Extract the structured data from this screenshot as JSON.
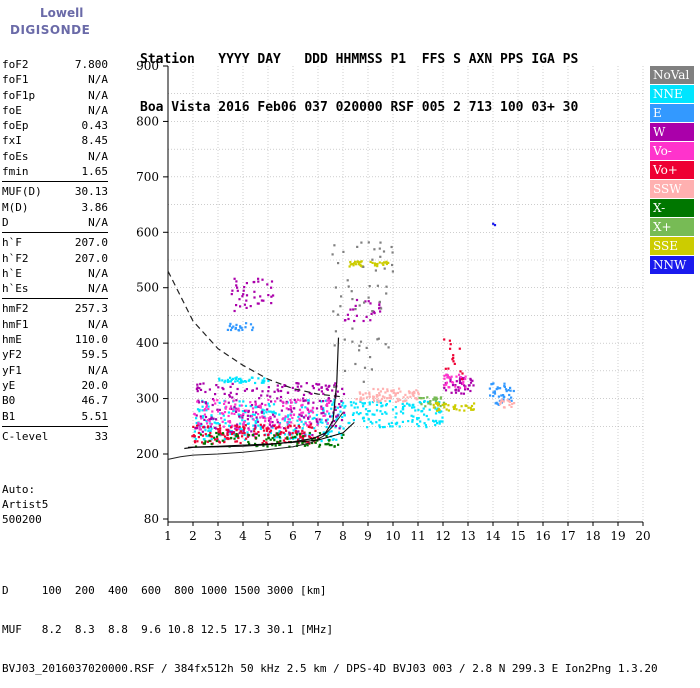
{
  "logo": {
    "line1": "Lowell",
    "line2": "DIGISONDE"
  },
  "header": {
    "row1": "Station   YYYY DAY   DDD HHMMSS P1  FFS S AXN PPS IGA PS",
    "row2": "Boa Vista 2016 Feb06 037 020000 RSF 005 2 713 100 03+ 30"
  },
  "params": [
    {
      "group": [
        {
          "k": "foF2",
          "v": "7.800"
        },
        {
          "k": "foF1",
          "v": "N/A"
        },
        {
          "k": "foF1p",
          "v": "N/A"
        },
        {
          "k": "foE",
          "v": "N/A"
        },
        {
          "k": "foEp",
          "v": "0.43"
        },
        {
          "k": "fxI",
          "v": "8.45"
        },
        {
          "k": "foEs",
          "v": "N/A"
        },
        {
          "k": "fmin",
          "v": "1.65"
        }
      ]
    },
    {
      "group": [
        {
          "k": "MUF(D)",
          "v": "30.13"
        },
        {
          "k": "M(D)",
          "v": "3.86"
        },
        {
          "k": "D",
          "v": "N/A"
        }
      ]
    },
    {
      "group": [
        {
          "k": "h`F",
          "v": "207.0"
        },
        {
          "k": "h`F2",
          "v": "207.0"
        },
        {
          "k": "h`E",
          "v": "N/A"
        },
        {
          "k": "h`Es",
          "v": "N/A"
        }
      ]
    },
    {
      "group": [
        {
          "k": "hmF2",
          "v": "257.3"
        },
        {
          "k": "hmF1",
          "v": "N/A"
        },
        {
          "k": "hmE",
          "v": "110.0"
        },
        {
          "k": "yF2",
          "v": "59.5"
        },
        {
          "k": "yF1",
          "v": "N/A"
        },
        {
          "k": "yE",
          "v": "20.0"
        },
        {
          "k": "B0",
          "v": "46.7"
        },
        {
          "k": "B1",
          "v": "5.51"
        }
      ]
    },
    {
      "group": [
        {
          "k": "C-level",
          "v": "33"
        }
      ]
    }
  ],
  "auto": {
    "line1": "Auto:",
    "line2": "Artist5",
    "line3": "500200"
  },
  "footer": {
    "row1": "D     100  200  400  600  800 1000 1500 3000 [km]",
    "row2": "MUF   8.2  8.3  8.8  9.6 10.8 12.5 17.3 30.1 [MHz]",
    "row3": "BVJ03_2016037020000.RSF / 384fx512h 50 kHz 2.5 km / DPS-4D BVJ03 003 / 2.8 N 299.3 E Ion2Png 1.3.20"
  },
  "legend": [
    {
      "label": "NoVal",
      "color": "#808080"
    },
    {
      "label": "NNE",
      "color": "#00e5ff"
    },
    {
      "label": "E",
      "color": "#3399ff"
    },
    {
      "label": "W",
      "color": "#aa00aa"
    },
    {
      "label": "Vo-",
      "color": "#ff33cc"
    },
    {
      "label": "Vo+",
      "color": "#ee0033"
    },
    {
      "label": "SSW",
      "color": "#ffb0b0"
    },
    {
      "label": "X-",
      "color": "#007700"
    },
    {
      "label": "X+",
      "color": "#77bb55"
    },
    {
      "label": "SSE",
      "color": "#cccc00"
    },
    {
      "label": "NNW",
      "color": "#1a1aee"
    }
  ],
  "chart_data": {
    "type": "scatter",
    "title": "",
    "xlabel": "",
    "ylabel": "",
    "xlim": [
      1,
      20
    ],
    "ylim": [
      80,
      900
    ],
    "xticks": [
      1,
      2,
      3,
      4,
      5,
      6,
      7,
      8,
      9,
      10,
      11,
      12,
      13,
      14,
      15,
      16,
      17,
      18,
      19,
      20
    ],
    "yticks": [
      80,
      200,
      300,
      400,
      500,
      600,
      700,
      800,
      900
    ],
    "series": [
      {
        "name": "NNE",
        "color": "#00e5ff",
        "clusters": [
          {
            "x": [
              2,
              8
            ],
            "y": [
              225,
              300
            ],
            "n": 260
          },
          {
            "x": [
              8,
              12
            ],
            "y": [
              250,
              300
            ],
            "n": 140
          },
          {
            "x": [
              3,
              5
            ],
            "y": [
              330,
              340
            ],
            "n": 40
          }
        ]
      },
      {
        "name": "E",
        "color": "#3399ff",
        "clusters": [
          {
            "x": [
              13.8,
              14.8
            ],
            "y": [
              290,
              330
            ],
            "n": 40
          },
          {
            "x": [
              3.2,
              4.4
            ],
            "y": [
              425,
              440
            ],
            "n": 20
          }
        ]
      },
      {
        "name": "W",
        "color": "#aa00aa",
        "clusters": [
          {
            "x": [
              2,
              8
            ],
            "y": [
              235,
              330
            ],
            "n": 260
          },
          {
            "x": [
              3.5,
              5.2
            ],
            "y": [
              460,
              520
            ],
            "n": 40
          },
          {
            "x": [
              8,
              9.5
            ],
            "y": [
              440,
              480
            ],
            "n": 25
          },
          {
            "x": [
              12,
              13.2
            ],
            "y": [
              310,
              345
            ],
            "n": 45
          }
        ]
      },
      {
        "name": "Vo-",
        "color": "#ff33cc",
        "clusters": [
          {
            "x": [
              2,
              7.5
            ],
            "y": [
              245,
              300
            ],
            "n": 140
          },
          {
            "x": [
              12,
              13
            ],
            "y": [
              320,
              345
            ],
            "n": 25
          }
        ]
      },
      {
        "name": "Vo+",
        "color": "#ee0033",
        "clusters": [
          {
            "x": [
              1.8,
              7
            ],
            "y": [
              220,
              255
            ],
            "n": 160
          },
          {
            "x": [
              12,
              12.8
            ],
            "y": [
              330,
              410
            ],
            "n": 15
          }
        ]
      },
      {
        "name": "SSW",
        "color": "#ffb0b0",
        "clusters": [
          {
            "x": [
              8.5,
              11
            ],
            "y": [
              295,
              320
            ],
            "n": 80
          },
          {
            "x": [
              14.2,
              14.8
            ],
            "y": [
              285,
              300
            ],
            "n": 15
          }
        ]
      },
      {
        "name": "X-",
        "color": "#007700",
        "clusters": [
          {
            "x": [
              2,
              8
            ],
            "y": [
              215,
              240
            ],
            "n": 90
          }
        ]
      },
      {
        "name": "X+",
        "color": "#77bb55",
        "clusters": [
          {
            "x": [
              11,
              12
            ],
            "y": [
              285,
              305
            ],
            "n": 25
          }
        ]
      },
      {
        "name": "SSE",
        "color": "#cccc00",
        "clusters": [
          {
            "x": [
              8.2,
              9.8
            ],
            "y": [
              540,
              550
            ],
            "n": 35
          },
          {
            "x": [
              11.5,
              13.2
            ],
            "y": [
              280,
              295
            ],
            "n": 40
          }
        ]
      },
      {
        "name": "NNW",
        "color": "#1a1aee",
        "clusters": [
          {
            "x": [
              13.9,
              14.1
            ],
            "y": [
              610,
              620
            ],
            "n": 2
          }
        ]
      },
      {
        "name": "NoVal",
        "color": "#808080",
        "clusters": [
          {
            "x": [
              7.5,
              10
            ],
            "y": [
              320,
              590
            ],
            "n": 60
          }
        ]
      }
    ],
    "traces": {
      "dashed": {
        "x": [
          1,
          2,
          3,
          4,
          5,
          6,
          7,
          8
        ],
        "y": [
          530,
          440,
          390,
          360,
          335,
          318,
          308,
          303
        ]
      },
      "trace_lower": {
        "x": [
          1,
          1.5,
          2,
          3,
          4,
          5,
          6,
          6.7,
          7.2,
          7.6,
          8
        ],
        "y": [
          190,
          195,
          198,
          200,
          203,
          208,
          213,
          220,
          232,
          250,
          275
        ]
      },
      "trace_main": {
        "x": [
          1.65,
          2,
          3,
          4,
          5,
          6,
          6.8,
          7.3,
          7.6,
          7.75,
          7.82
        ],
        "y": [
          210,
          212,
          213,
          214,
          217,
          222,
          228,
          238,
          260,
          330,
          410
        ]
      },
      "profile": {
        "x": [
          1.8,
          3,
          4,
          5,
          6,
          7,
          8,
          8.45
        ],
        "y": [
          212,
          214,
          216,
          218,
          221,
          225,
          238,
          257
        ]
      }
    }
  }
}
